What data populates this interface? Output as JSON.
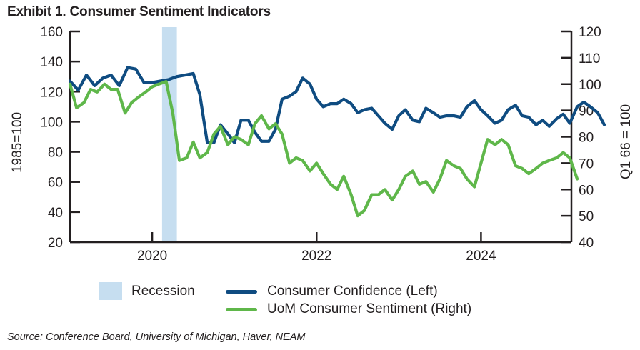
{
  "title": "Exhibit 1. Consumer Sentiment Indicators",
  "source": "Source: Conference Board, University of Michigan, Haver, NEAM",
  "colors": {
    "confidence": "#0f4c81",
    "sentiment": "#5fb74a",
    "recession": "#c6def0",
    "axis": "#231f20"
  },
  "chart_data": {
    "type": "line",
    "title": "Exhibit 1. Consumer Sentiment Indicators",
    "x_range": [
      2019.0,
      2025.1
    ],
    "x_ticks": [
      2020,
      2022,
      2024
    ],
    "left_axis": {
      "label": "1985=100",
      "range": [
        20,
        160
      ],
      "ticks": [
        20,
        40,
        60,
        80,
        100,
        120,
        140,
        160
      ]
    },
    "right_axis": {
      "label": "Q1 66 = 100",
      "range": [
        40,
        120
      ],
      "ticks": [
        40,
        50,
        60,
        70,
        80,
        90,
        100,
        110,
        120
      ]
    },
    "recession": {
      "label": "Recession",
      "start": 2020.12,
      "end": 2020.3
    },
    "series": [
      {
        "name": "Consumer Confidence (Left)",
        "axis": "left",
        "color": "#0f4c81",
        "points": [
          [
            2019.0,
            127
          ],
          [
            2019.1,
            121
          ],
          [
            2019.2,
            131
          ],
          [
            2019.3,
            124
          ],
          [
            2019.4,
            129
          ],
          [
            2019.5,
            131
          ],
          [
            2019.6,
            124
          ],
          [
            2019.7,
            136
          ],
          [
            2019.8,
            135
          ],
          [
            2019.9,
            126
          ],
          [
            2020.0,
            126
          ],
          [
            2020.1,
            127
          ],
          [
            2020.2,
            128
          ],
          [
            2020.3,
            130
          ],
          [
            2020.5,
            132
          ],
          [
            2020.58,
            118
          ],
          [
            2020.67,
            86
          ],
          [
            2020.75,
            86
          ],
          [
            2020.83,
            98
          ],
          [
            2020.92,
            92
          ],
          [
            2021.0,
            86
          ],
          [
            2021.08,
            101
          ],
          [
            2021.17,
            101
          ],
          [
            2021.25,
            93
          ],
          [
            2021.33,
            87
          ],
          [
            2021.42,
            87
          ],
          [
            2021.5,
            95
          ],
          [
            2021.58,
            115
          ],
          [
            2021.67,
            117
          ],
          [
            2021.75,
            120
          ],
          [
            2021.83,
            129
          ],
          [
            2021.92,
            125
          ],
          [
            2022.0,
            115
          ],
          [
            2022.08,
            110
          ],
          [
            2022.17,
            112
          ],
          [
            2022.25,
            112
          ],
          [
            2022.33,
            115
          ],
          [
            2022.42,
            112
          ],
          [
            2022.5,
            106
          ],
          [
            2022.58,
            108
          ],
          [
            2022.67,
            109
          ],
          [
            2022.75,
            104
          ],
          [
            2022.83,
            99
          ],
          [
            2022.92,
            95
          ],
          [
            2023.0,
            104
          ],
          [
            2023.08,
            108
          ],
          [
            2023.17,
            101
          ],
          [
            2023.25,
            100
          ],
          [
            2023.33,
            109
          ],
          [
            2023.42,
            106
          ],
          [
            2023.5,
            103
          ],
          [
            2023.58,
            104
          ],
          [
            2023.67,
            104
          ],
          [
            2023.75,
            103
          ],
          [
            2023.83,
            110
          ],
          [
            2023.92,
            114
          ],
          [
            2024.0,
            108
          ],
          [
            2024.08,
            104
          ],
          [
            2024.17,
            99
          ],
          [
            2024.25,
            101
          ],
          [
            2024.33,
            108
          ],
          [
            2024.42,
            111
          ],
          [
            2024.5,
            104
          ],
          [
            2024.58,
            103
          ],
          [
            2024.67,
            98
          ],
          [
            2024.75,
            101
          ],
          [
            2024.83,
            97
          ],
          [
            2024.92,
            102
          ],
          [
            2025.0,
            105
          ],
          [
            2025.08,
            99
          ],
          [
            2025.17,
            110
          ],
          [
            2025.25,
            113
          ],
          [
            2025.33,
            110
          ],
          [
            2025.42,
            106
          ],
          [
            2025.5,
            98
          ]
        ]
      },
      {
        "name": "UoM Consumer Sentiment (Right)",
        "axis": "right",
        "color": "#5fb74a",
        "points": [
          [
            2019.0,
            100
          ],
          [
            2019.08,
            91
          ],
          [
            2019.17,
            93
          ],
          [
            2019.25,
            98
          ],
          [
            2019.33,
            97
          ],
          [
            2019.42,
            100
          ],
          [
            2019.5,
            98
          ],
          [
            2019.58,
            98
          ],
          [
            2019.67,
            89
          ],
          [
            2019.75,
            93
          ],
          [
            2019.83,
            95
          ],
          [
            2019.92,
            97
          ],
          [
            2020.0,
            99
          ],
          [
            2020.08,
            100
          ],
          [
            2020.17,
            101
          ],
          [
            2020.25,
            89
          ],
          [
            2020.33,
            71
          ],
          [
            2020.42,
            72
          ],
          [
            2020.5,
            78
          ],
          [
            2020.58,
            72
          ],
          [
            2020.67,
            74
          ],
          [
            2020.75,
            81
          ],
          [
            2020.83,
            84
          ],
          [
            2020.92,
            77
          ],
          [
            2021.0,
            80
          ],
          [
            2021.08,
            79
          ],
          [
            2021.17,
            77
          ],
          [
            2021.25,
            85
          ],
          [
            2021.33,
            88
          ],
          [
            2021.42,
            83
          ],
          [
            2021.5,
            85
          ],
          [
            2021.58,
            81
          ],
          [
            2021.67,
            70
          ],
          [
            2021.75,
            72
          ],
          [
            2021.83,
            71
          ],
          [
            2021.92,
            67
          ],
          [
            2022.0,
            70
          ],
          [
            2022.08,
            66
          ],
          [
            2022.17,
            62
          ],
          [
            2022.25,
            60
          ],
          [
            2022.33,
            65
          ],
          [
            2022.42,
            58
          ],
          [
            2022.5,
            50
          ],
          [
            2022.58,
            52
          ],
          [
            2022.67,
            58
          ],
          [
            2022.75,
            58
          ],
          [
            2022.83,
            60
          ],
          [
            2022.92,
            56
          ],
          [
            2023.0,
            60
          ],
          [
            2023.08,
            65
          ],
          [
            2023.17,
            67
          ],
          [
            2023.25,
            62
          ],
          [
            2023.33,
            63
          ],
          [
            2023.42,
            59
          ],
          [
            2023.5,
            64
          ],
          [
            2023.58,
            71
          ],
          [
            2023.67,
            69
          ],
          [
            2023.75,
            68
          ],
          [
            2023.83,
            64
          ],
          [
            2023.92,
            61
          ],
          [
            2024.0,
            70
          ],
          [
            2024.08,
            79
          ],
          [
            2024.17,
            77
          ],
          [
            2024.25,
            79
          ],
          [
            2024.33,
            77
          ],
          [
            2024.42,
            69
          ],
          [
            2024.5,
            68
          ],
          [
            2024.58,
            66
          ],
          [
            2024.67,
            68
          ],
          [
            2024.75,
            70
          ],
          [
            2024.83,
            71
          ],
          [
            2024.92,
            72
          ],
          [
            2025.0,
            74
          ],
          [
            2025.08,
            72
          ],
          [
            2025.17,
            64
          ]
        ]
      }
    ]
  }
}
